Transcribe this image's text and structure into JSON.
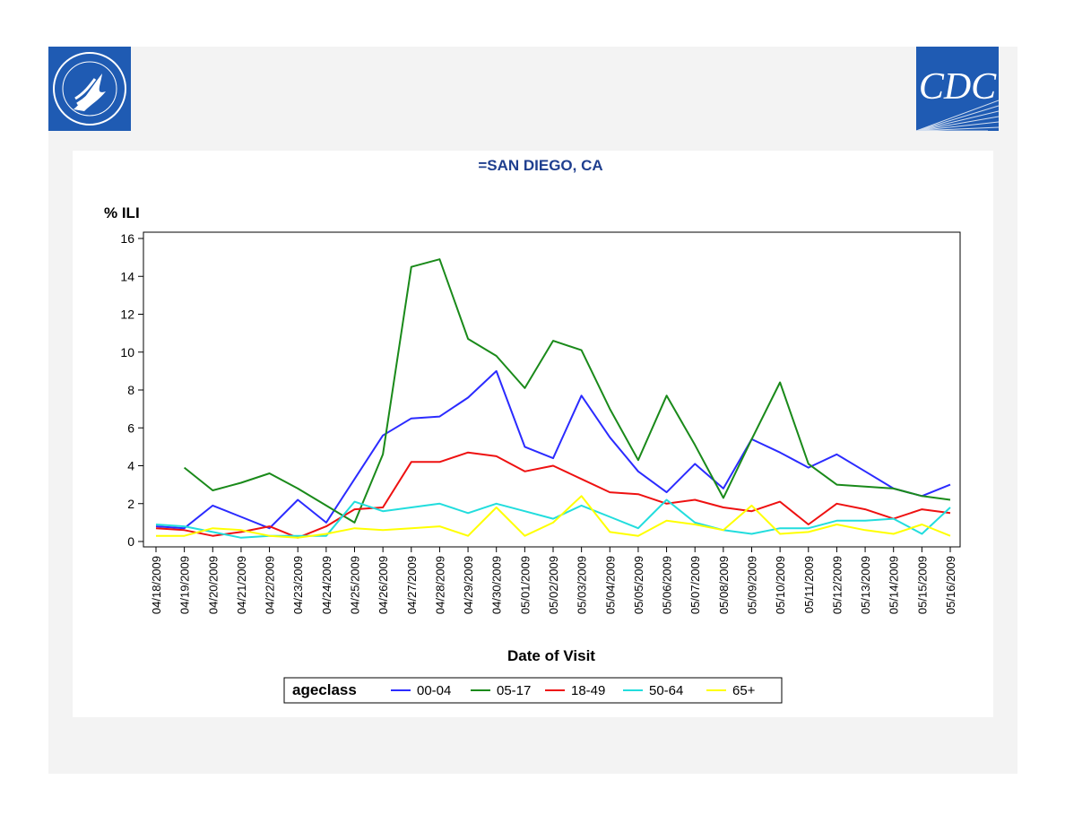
{
  "logos": {
    "left": {
      "name": "HHS seal",
      "color": "#1f5bb3"
    },
    "right": {
      "name": "CDC logo",
      "text": "CDC",
      "color": "#1f5bb3"
    }
  },
  "chart_data": {
    "type": "line",
    "title": "=SAN DIEGO, CA",
    "ylabel": "% ILI",
    "xlabel": "Date of Visit",
    "ylim": [
      0,
      16
    ],
    "yticks": [
      0,
      2,
      4,
      6,
      8,
      10,
      12,
      14,
      16
    ],
    "grid": false,
    "legend_position": "bottom",
    "legend_title": "ageclass",
    "x": [
      "04/18/2009",
      "04/19/2009",
      "04/20/2009",
      "04/21/2009",
      "04/22/2009",
      "04/23/2009",
      "04/24/2009",
      "04/25/2009",
      "04/26/2009",
      "04/27/2009",
      "04/28/2009",
      "04/29/2009",
      "04/30/2009",
      "05/01/2009",
      "05/02/2009",
      "05/03/2009",
      "05/04/2009",
      "05/05/2009",
      "05/06/2009",
      "05/07/2009",
      "05/08/2009",
      "05/09/2009",
      "05/10/2009",
      "05/11/2009",
      "05/12/2009",
      "05/13/2009",
      "05/14/2009",
      "05/15/2009",
      "05/16/2009"
    ],
    "series": [
      {
        "name": "00-04",
        "color": "#2b2bff",
        "values": [
          0.8,
          0.7,
          1.9,
          1.3,
          0.7,
          2.2,
          1.0,
          3.3,
          5.6,
          6.5,
          6.6,
          7.6,
          9.0,
          5.0,
          4.4,
          7.7,
          5.5,
          3.7,
          2.6,
          4.1,
          2.8,
          5.4,
          4.7,
          3.9,
          4.6,
          3.7,
          2.8,
          2.4,
          3.0
        ]
      },
      {
        "name": "05-17",
        "color": "#1a8a1a",
        "values": [
          null,
          3.9,
          2.7,
          3.1,
          3.6,
          2.8,
          1.9,
          1.0,
          4.6,
          14.5,
          14.9,
          10.7,
          9.8,
          8.1,
          10.6,
          10.1,
          7.0,
          4.3,
          7.7,
          5.1,
          2.3,
          5.4,
          8.4,
          4.1,
          3.0,
          2.9,
          2.8,
          2.4,
          2.2
        ]
      },
      {
        "name": "18-49",
        "color": "#ee1111",
        "values": [
          0.7,
          0.6,
          0.3,
          0.5,
          0.8,
          0.2,
          0.8,
          1.7,
          1.8,
          4.2,
          4.2,
          4.7,
          4.5,
          3.7,
          4.0,
          3.3,
          2.6,
          2.5,
          2.0,
          2.2,
          1.8,
          1.6,
          2.1,
          0.9,
          2.0,
          1.7,
          1.2,
          1.7,
          1.5
        ]
      },
      {
        "name": "50-64",
        "color": "#22dddd",
        "values": [
          0.9,
          0.8,
          0.5,
          0.2,
          0.3,
          0.3,
          0.3,
          2.1,
          1.6,
          1.8,
          2.0,
          1.5,
          2.0,
          1.6,
          1.2,
          1.9,
          1.3,
          0.7,
          2.2,
          1.0,
          0.6,
          0.4,
          0.7,
          0.7,
          1.1,
          1.1,
          1.2,
          0.4,
          1.8
        ]
      },
      {
        "name": "65+",
        "color": "#ffff00",
        "values": [
          0.3,
          0.3,
          0.7,
          0.6,
          0.3,
          0.2,
          0.4,
          0.7,
          0.6,
          0.7,
          0.8,
          0.3,
          1.8,
          0.3,
          1.0,
          2.4,
          0.5,
          0.3,
          1.1,
          0.9,
          0.6,
          1.9,
          0.4,
          0.5,
          0.9,
          0.6,
          0.4,
          0.9,
          0.3
        ]
      }
    ]
  }
}
